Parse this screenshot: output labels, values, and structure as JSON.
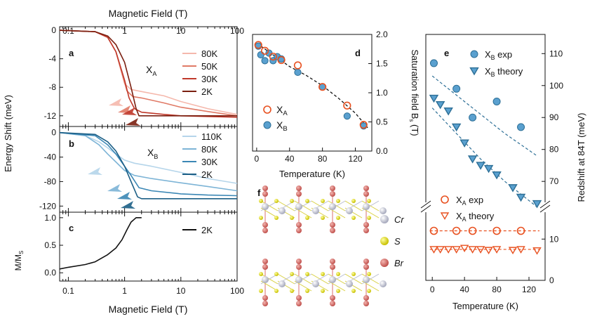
{
  "colors": {
    "red": [
      "#f5b8ac",
      "#e07a66",
      "#c0392b",
      "#7a1f10"
    ],
    "blue": [
      "#b5d5ea",
      "#7db4d6",
      "#3b87b5",
      "#1c5f86"
    ],
    "marker_red": "#e8501f",
    "marker_blue": "#5aa0cf",
    "marker_blue_dark": "#2d6f96",
    "black": "#111111"
  },
  "panels": {
    "a": {
      "label": "a",
      "annotation": "X",
      "annotation_sub": "A"
    },
    "b": {
      "label": "b",
      "annotation": "X",
      "annotation_sub": "B"
    },
    "c": {
      "label": "c"
    },
    "d": {
      "label": "d"
    },
    "e": {
      "label": "e"
    },
    "f": {
      "label": "f"
    }
  },
  "chart_data": [
    {
      "id": "a",
      "type": "line",
      "title": "",
      "top_xlabel": "Magnetic Field (T)",
      "xscale": "log",
      "xlim": [
        0.07,
        100
      ],
      "x_ticks": [
        "0.1",
        "1",
        "10",
        "100"
      ],
      "ylabel": "Energy Shift (meV)",
      "ylim": [
        -13.5,
        0.5
      ],
      "y_ticks": [
        "0",
        "-4",
        "-8",
        "-12"
      ],
      "legend": [
        "80K",
        "50K",
        "30K",
        "2K"
      ],
      "legend_position": "right",
      "series": [
        {
          "name": "80K",
          "x": [
            0.07,
            0.3,
            0.5,
            0.7,
            0.85,
            1.0,
            1.3,
            2,
            5,
            10,
            30,
            100
          ],
          "y": [
            0,
            -0.2,
            -1.0,
            -3.0,
            -5.5,
            -7.5,
            -8.3,
            -8.6,
            -9.2,
            -10.0,
            -11.0,
            -11.8
          ]
        },
        {
          "name": "50K",
          "x": [
            0.07,
            0.3,
            0.5,
            0.7,
            0.9,
            1.1,
            1.4,
            2,
            5,
            10,
            30,
            100
          ],
          "y": [
            0,
            -0.2,
            -1.0,
            -3.0,
            -6.0,
            -8.5,
            -9.3,
            -9.5,
            -10.2,
            -10.8,
            -11.4,
            -12.0
          ]
        },
        {
          "name": "30K",
          "x": [
            0.07,
            0.3,
            0.5,
            0.7,
            1.0,
            1.2,
            1.5,
            2,
            5,
            10,
            30,
            100
          ],
          "y": [
            0,
            -0.2,
            -1.0,
            -3.0,
            -7.0,
            -9.5,
            -11.0,
            -11.5,
            -11.8,
            -12.0,
            -12.1,
            -12.2
          ]
        },
        {
          "name": "2K",
          "x": [
            0.07,
            0.3,
            0.5,
            0.7,
            1.0,
            1.3,
            1.6,
            1.8,
            5,
            10,
            30,
            100
          ],
          "y": [
            0,
            -0.2,
            -0.8,
            -2.0,
            -4.5,
            -8.0,
            -11.0,
            -12.0,
            -12.0,
            -12.0,
            -12.0,
            -12.0
          ]
        }
      ]
    },
    {
      "id": "b",
      "type": "line",
      "xscale": "log",
      "xlim": [
        0.07,
        100
      ],
      "ylabel": "Energy Shift (meV)",
      "ylim": [
        -130,
        10
      ],
      "y_ticks": [
        "0",
        "-40",
        "-80",
        "-120"
      ],
      "legend": [
        "110K",
        "80K",
        "30K",
        "2K"
      ],
      "legend_position": "right",
      "series": [
        {
          "name": "110K",
          "x": [
            0.07,
            0.2,
            0.35,
            0.5,
            0.7,
            1.0,
            1.5,
            3,
            10,
            30,
            100
          ],
          "y": [
            0,
            -5,
            -15,
            -25,
            -35,
            -45,
            -50,
            -55,
            -65,
            -75,
            -83
          ]
        },
        {
          "name": "80K",
          "x": [
            0.07,
            0.2,
            0.35,
            0.5,
            0.7,
            1.0,
            1.5,
            3,
            10,
            30,
            100
          ],
          "y": [
            0,
            -5,
            -20,
            -35,
            -48,
            -62,
            -70,
            -75,
            -82,
            -88,
            -95
          ]
        },
        {
          "name": "30K",
          "x": [
            0.07,
            0.3,
            0.5,
            0.7,
            1.0,
            1.3,
            1.8,
            3,
            10,
            30,
            100
          ],
          "y": [
            0,
            -5,
            -20,
            -35,
            -55,
            -70,
            -90,
            -95,
            -100,
            -102,
            -103
          ]
        },
        {
          "name": "2K",
          "x": [
            0.07,
            0.3,
            0.5,
            0.7,
            1.0,
            1.3,
            1.7,
            2,
            10,
            30,
            100
          ],
          "y": [
            0,
            -3,
            -15,
            -30,
            -55,
            -80,
            -105,
            -108,
            -108,
            -108,
            -108
          ]
        }
      ]
    },
    {
      "id": "c",
      "type": "line",
      "xscale": "log",
      "xlim": [
        0.07,
        100
      ],
      "x_ticks": [
        "0.1",
        "1",
        "10",
        "100"
      ],
      "xlabel": "Magnetic Field (T)",
      "ylabel": "M/M",
      "ylabel_sub": "S",
      "ylim": [
        -0.15,
        1.1
      ],
      "y_ticks": [
        "0.0",
        "0.5",
        "1.0"
      ],
      "legend": [
        "2K"
      ],
      "series": [
        {
          "name": "2K",
          "x": [
            0.07,
            0.1,
            0.2,
            0.3,
            0.5,
            0.7,
            0.9,
            1.1,
            1.3,
            1.6,
            2.0
          ],
          "y": [
            0.07,
            0.1,
            0.15,
            0.2,
            0.33,
            0.45,
            0.6,
            0.78,
            0.92,
            1.0,
            1.0
          ]
        }
      ]
    },
    {
      "id": "d",
      "type": "scatter",
      "xlabel": "Temperature (K)",
      "ylabel": "Saturation field B",
      "ylabel_sub": "s",
      "ylabel_unit": "(T)",
      "xlim": [
        -5,
        140
      ],
      "ylim": [
        0,
        2.0
      ],
      "x_ticks": [
        "0",
        "40",
        "80",
        "120"
      ],
      "y_ticks": [
        "0.0",
        "0.5",
        "1.0",
        "1.5",
        "2.0"
      ],
      "legend": [
        {
          "name": "X",
          "sub": "A"
        },
        {
          "name": "X",
          "sub": "B"
        }
      ],
      "series": [
        {
          "name": "XA",
          "x": [
            2,
            10,
            20,
            30,
            50,
            80,
            110,
            130
          ],
          "y": [
            1.82,
            1.72,
            1.62,
            1.56,
            1.47,
            1.1,
            0.78,
            0.45
          ]
        },
        {
          "name": "XB",
          "x": [
            2,
            5,
            10,
            15,
            20,
            25,
            30,
            50,
            80,
            110,
            130
          ],
          "y": [
            1.8,
            1.65,
            1.55,
            1.68,
            1.55,
            1.62,
            1.58,
            1.35,
            1.1,
            0.6,
            0.43
          ]
        },
        {
          "name": "fit",
          "x": [
            0,
            20,
            40,
            60,
            80,
            100,
            120,
            135
          ],
          "y": [
            1.85,
            1.65,
            1.45,
            1.3,
            1.12,
            0.9,
            0.65,
            0.4
          ]
        }
      ]
    },
    {
      "id": "e",
      "type": "scatter",
      "xlabel": "Temperature (K)",
      "ylabel": "Redshift at 84T (meV)",
      "xlim": [
        -8,
        140
      ],
      "x_ticks": [
        "0",
        "40",
        "80",
        "120"
      ],
      "upper_ylim": [
        63,
        116
      ],
      "upper_y_ticks": [
        "70",
        "80",
        "90",
        "100",
        "110"
      ],
      "lower_ylim": [
        0,
        16
      ],
      "lower_y_ticks": [
        "0",
        "10"
      ],
      "legend_upper": [
        {
          "name": "X",
          "sub": "B",
          "suffix": " exp"
        },
        {
          "name": "X",
          "sub": "B",
          "suffix": " theory"
        }
      ],
      "legend_lower": [
        {
          "name": "X",
          "sub": "A",
          "suffix": " exp"
        },
        {
          "name": "X",
          "sub": "A",
          "suffix": " theory"
        }
      ],
      "series": [
        {
          "name": "XB exp",
          "x": [
            2,
            30,
            50,
            80,
            110
          ],
          "y": [
            107,
            99,
            90,
            95,
            87
          ]
        },
        {
          "name": "XB theory",
          "x": [
            2,
            10,
            20,
            30,
            40,
            50,
            60,
            70,
            80,
            100,
            110,
            130
          ],
          "y": [
            96,
            94,
            92,
            87,
            82,
            77,
            75,
            74,
            72,
            68,
            65,
            63
          ]
        },
        {
          "name": "XB theory dashed upper",
          "x": [
            0,
            30,
            60,
            90,
            130
          ],
          "y": [
            103,
            97,
            91,
            85,
            78
          ]
        },
        {
          "name": "XB theory dashed lower",
          "x": [
            0,
            30,
            60,
            90,
            130
          ],
          "y": [
            93,
            85,
            77,
            70,
            62
          ]
        },
        {
          "name": "XA exp",
          "x": [
            2,
            30,
            50,
            80,
            110
          ],
          "y": [
            12,
            12,
            12,
            12,
            12
          ]
        },
        {
          "name": "XA theory",
          "x": [
            2,
            10,
            20,
            30,
            40,
            50,
            60,
            70,
            80,
            100,
            110,
            130
          ],
          "y": [
            7.5,
            7.5,
            7.5,
            7.5,
            7.8,
            7.5,
            7.5,
            7.3,
            7.5,
            7.3,
            7.5,
            7.2
          ]
        }
      ]
    }
  ],
  "structure": {
    "legend": [
      {
        "label": "Cr",
        "color": "#c8cad6"
      },
      {
        "label": "S",
        "color": "#e8e020"
      },
      {
        "label": "Br",
        "color": "#d9706e"
      }
    ]
  }
}
